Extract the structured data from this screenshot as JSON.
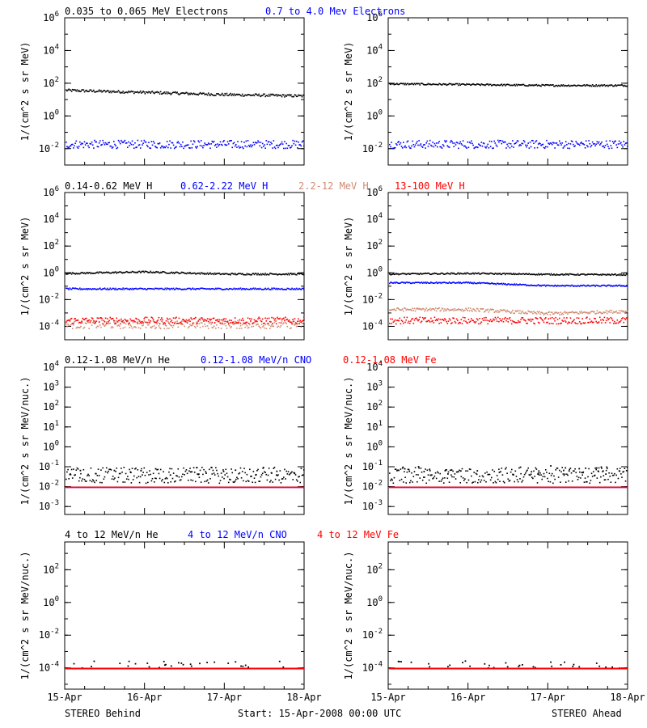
{
  "figure": {
    "footer": {
      "left_label": "STEREO Behind",
      "center_label": "Start: 15-Apr-2008 00:00 UTC",
      "right_label": "STEREO Ahead"
    },
    "x_tick_labels": [
      "15-Apr",
      "16-Apr",
      "17-Apr",
      "18-Apr"
    ]
  },
  "rows": [
    {
      "headers": [
        {
          "text": "0.035 to 0.065 MeV Electrons",
          "color": "#000000"
        },
        {
          "text": "0.7 to 4.0 Mev Electrons",
          "color": "#0000ff"
        }
      ]
    },
    {
      "headers": [
        {
          "text": "0.14-0.62 MeV H",
          "color": "#000000"
        },
        {
          "text": "0.62-2.22 MeV H",
          "color": "#0000ff"
        },
        {
          "text": "2.2-12 MeV H",
          "color": "#d08a70"
        },
        {
          "text": "13-100 MeV H",
          "color": "#ff0000"
        }
      ]
    },
    {
      "headers": [
        {
          "text": "0.12-1.08 MeV/n He",
          "color": "#000000"
        },
        {
          "text": "0.12-1.08 MeV/n CNO",
          "color": "#0000ff"
        },
        {
          "text": "0.12-1.08 MeV Fe",
          "color": "#ff0000"
        }
      ]
    },
    {
      "headers": [
        {
          "text": "4 to 12 MeV/n He",
          "color": "#000000"
        },
        {
          "text": "4 to 12 MeV/n CNO",
          "color": "#0000ff"
        },
        {
          "text": "4 to 12 MeV Fe",
          "color": "#ff0000"
        }
      ]
    }
  ],
  "chart_data": [
    {
      "type": "scatter",
      "panel": "electrons-behind",
      "x": [
        "15-Apr",
        "16-Apr",
        "17-Apr",
        "18-Apr"
      ],
      "xticks": [
        "15-Apr",
        "16-Apr",
        "17-Apr",
        "18-Apr"
      ],
      "ylabel": "1/(cm^2 s sr MeV)",
      "yscale": "log",
      "ylim": [
        0.001,
        1000000
      ],
      "yticks": [
        {
          "exp": "-2"
        },
        {
          "exp": "0"
        },
        {
          "exp": "2"
        },
        {
          "exp": "4"
        },
        {
          "exp": "6"
        }
      ],
      "series": [
        {
          "name": "0.035 to 0.065 MeV Electrons",
          "color": "#000000",
          "values": [
            40,
            30,
            22,
            18
          ],
          "jitter": 0.08
        },
        {
          "name": "0.7 to 4.0 Mev Electrons",
          "color": "#0000ff",
          "values": [
            0.02,
            0.02,
            0.02,
            0.02
          ],
          "jitter": 0.25
        }
      ]
    },
    {
      "type": "scatter",
      "panel": "electrons-ahead",
      "x": [
        "15-Apr",
        "16-Apr",
        "17-Apr",
        "18-Apr"
      ],
      "xticks": [
        "15-Apr",
        "16-Apr",
        "17-Apr",
        "18-Apr"
      ],
      "ylabel": "1/(cm^2 s sr MeV)",
      "yscale": "log",
      "ylim": [
        0.001,
        1000000
      ],
      "yticks": [
        {
          "exp": "-2"
        },
        {
          "exp": "0"
        },
        {
          "exp": "2"
        },
        {
          "exp": "4"
        },
        {
          "exp": "6"
        }
      ],
      "series": [
        {
          "name": "",
          "color": "#000000",
          "values": [
            100,
            90,
            80,
            80
          ],
          "jitter": 0.05
        },
        {
          "name": "",
          "color": "#0000ff",
          "values": [
            0.02,
            0.02,
            0.02,
            0.02
          ],
          "jitter": 0.25
        }
      ]
    },
    {
      "type": "scatter",
      "panel": "protons-behind",
      "x": [
        "15-Apr",
        "16-Apr",
        "17-Apr",
        "18-Apr"
      ],
      "xticks": [
        "15-Apr",
        "16-Apr",
        "17-Apr",
        "18-Apr"
      ],
      "ylabel": "1/(cm^2 s sr MeV)",
      "yscale": "log",
      "ylim": [
        1e-05,
        1000000
      ],
      "yticks": [
        {
          "exp": "-4"
        },
        {
          "exp": "-2"
        },
        {
          "exp": "0"
        },
        {
          "exp": "2"
        },
        {
          "exp": "4"
        },
        {
          "exp": "6"
        }
      ],
      "series": [
        {
          "name": "0.14-0.62 MeV H",
          "color": "#000000",
          "values": [
            1.0,
            1.3,
            0.9,
            0.9
          ],
          "jitter": 0.06
        },
        {
          "name": "0.62-2.22 MeV H",
          "color": "#0000ff",
          "values": [
            0.07,
            0.07,
            0.07,
            0.07
          ],
          "jitter": 0.06
        },
        {
          "name": "2.2-12 MeV H",
          "color": "#d08a70",
          "values": [
            0.00015,
            0.00015,
            0.00015,
            0.00015
          ],
          "jitter": 0.3
        },
        {
          "name": "13-100 MeV H",
          "color": "#ff0000",
          "values": [
            0.0003,
            0.0003,
            0.0003,
            0.0003
          ],
          "jitter": 0.25
        }
      ]
    },
    {
      "type": "scatter",
      "panel": "protons-ahead",
      "x": [
        "15-Apr",
        "16-Apr",
        "17-Apr",
        "18-Apr"
      ],
      "xticks": [
        "15-Apr",
        "16-Apr",
        "17-Apr",
        "18-Apr"
      ],
      "ylabel": "1/(cm^2 s sr MeV)",
      "yscale": "log",
      "ylim": [
        1e-05,
        1000000
      ],
      "yticks": [
        {
          "exp": "-4"
        },
        {
          "exp": "-2"
        },
        {
          "exp": "0"
        },
        {
          "exp": "2"
        },
        {
          "exp": "4"
        },
        {
          "exp": "6"
        }
      ],
      "series": [
        {
          "name": "",
          "color": "#000000",
          "values": [
            0.9,
            1.0,
            0.85,
            0.8
          ],
          "jitter": 0.05
        },
        {
          "name": "",
          "color": "#0000ff",
          "values": [
            0.2,
            0.2,
            0.12,
            0.12
          ],
          "jitter": 0.05
        },
        {
          "name": "",
          "color": "#d08a70",
          "values": [
            0.002,
            0.002,
            0.001,
            0.0015
          ],
          "jitter": 0.12
        },
        {
          "name": "",
          "color": "#ff0000",
          "values": [
            0.0003,
            0.0003,
            0.0003,
            0.0003
          ],
          "jitter": 0.25
        }
      ]
    },
    {
      "type": "scatter",
      "panel": "ions-low-behind",
      "x": [
        "15-Apr",
        "16-Apr",
        "17-Apr",
        "18-Apr"
      ],
      "xticks": [
        "15-Apr",
        "16-Apr",
        "17-Apr",
        "18-Apr"
      ],
      "ylabel": "1/(cm^2 s sr MeV/nuc.)",
      "yscale": "log",
      "ylim": [
        0.0004,
        10000
      ],
      "yticks": [
        {
          "exp": "-3"
        },
        {
          "exp": "-2"
        },
        {
          "exp": "-1"
        },
        {
          "exp": "0"
        },
        {
          "exp": "1"
        },
        {
          "exp": "2"
        },
        {
          "exp": "3"
        },
        {
          "exp": "4"
        }
      ],
      "series": [
        {
          "name": "0.12-1.08 MeV/n He",
          "color": "#000000",
          "values": [
            0.04,
            0.04,
            0.04,
            0.04
          ],
          "upper": 0.1,
          "jitter": 0.4
        },
        {
          "name": "0.12-1.08 MeV/n CNO",
          "color": "#0000ff",
          "values": [
            0.01,
            0.01,
            0.01,
            0.01
          ],
          "jitter": 0.0
        },
        {
          "name": "0.12-1.08 MeV Fe",
          "color": "#ff0000",
          "values": [
            0.01,
            0.01,
            0.01,
            0.01
          ],
          "jitter": 0.0
        }
      ]
    },
    {
      "type": "scatter",
      "panel": "ions-low-ahead",
      "x": [
        "15-Apr",
        "16-Apr",
        "17-Apr",
        "18-Apr"
      ],
      "xticks": [
        "15-Apr",
        "16-Apr",
        "17-Apr",
        "18-Apr"
      ],
      "ylabel": "1/(cm^2 s sr MeV/nuc.)",
      "yscale": "log",
      "ylim": [
        0.0004,
        10000
      ],
      "yticks": [
        {
          "exp": "-3"
        },
        {
          "exp": "-2"
        },
        {
          "exp": "-1"
        },
        {
          "exp": "0"
        },
        {
          "exp": "1"
        },
        {
          "exp": "2"
        },
        {
          "exp": "3"
        },
        {
          "exp": "4"
        }
      ],
      "series": [
        {
          "name": "",
          "color": "#000000",
          "values": [
            0.04,
            0.04,
            0.04,
            0.04
          ],
          "upper": 0.12,
          "jitter": 0.4
        },
        {
          "name": "",
          "color": "#0000ff",
          "values": [
            0.01,
            0.01,
            0.01,
            0.01
          ],
          "jitter": 0.0
        },
        {
          "name": "",
          "color": "#ff0000",
          "values": [
            0.01,
            0.01,
            0.01,
            0.01
          ],
          "jitter": 0.0
        }
      ]
    },
    {
      "type": "scatter",
      "panel": "ions-high-behind",
      "x": [
        "15-Apr",
        "16-Apr",
        "17-Apr",
        "18-Apr"
      ],
      "xticks": [
        "15-Apr",
        "16-Apr",
        "17-Apr",
        "18-Apr"
      ],
      "ylabel": "1/(cm^2 s sr MeV/nuc.)",
      "yscale": "log",
      "ylim": [
        5e-06,
        5000
      ],
      "yticks": [
        {
          "exp": "-4"
        },
        {
          "exp": "-2"
        },
        {
          "exp": "0"
        },
        {
          "exp": "2"
        }
      ],
      "series": [
        {
          "name": "4 to 12 MeV/n He",
          "color": "#000000",
          "values": [
            0.0001,
            0.0001,
            0.0001,
            0.0001
          ],
          "upper": 0.0003,
          "jitter": 0.0
        },
        {
          "name": "4 to 12 MeV/n CNO",
          "color": "#0000ff",
          "values": [
            0.0001,
            0.0001,
            0.0001,
            0.0001
          ],
          "jitter": 0.0
        },
        {
          "name": "4 to 12 MeV Fe",
          "color": "#ff0000",
          "values": [
            0.0001,
            0.0001,
            0.0001,
            0.0001
          ],
          "jitter": 0.0
        }
      ]
    },
    {
      "type": "scatter",
      "panel": "ions-high-ahead",
      "x": [
        "15-Apr",
        "16-Apr",
        "17-Apr",
        "18-Apr"
      ],
      "xticks": [
        "15-Apr",
        "16-Apr",
        "17-Apr",
        "18-Apr"
      ],
      "ylabel": "1/(cm^2 s sr MeV/nuc.)",
      "yscale": "log",
      "ylim": [
        5e-06,
        5000
      ],
      "yticks": [
        {
          "exp": "-4"
        },
        {
          "exp": "-2"
        },
        {
          "exp": "0"
        },
        {
          "exp": "2"
        }
      ],
      "series": [
        {
          "name": "",
          "color": "#000000",
          "values": [
            0.0001,
            0.0001,
            0.0001,
            0.0001
          ],
          "upper": 0.0003,
          "jitter": 0.0
        },
        {
          "name": "",
          "color": "#0000ff",
          "values": [
            0.0001,
            0.0001,
            0.0001,
            0.0001
          ],
          "jitter": 0.0
        },
        {
          "name": "",
          "color": "#ff0000",
          "values": [
            0.0001,
            0.0001,
            0.0001,
            0.0001
          ],
          "jitter": 0.0
        }
      ]
    }
  ]
}
